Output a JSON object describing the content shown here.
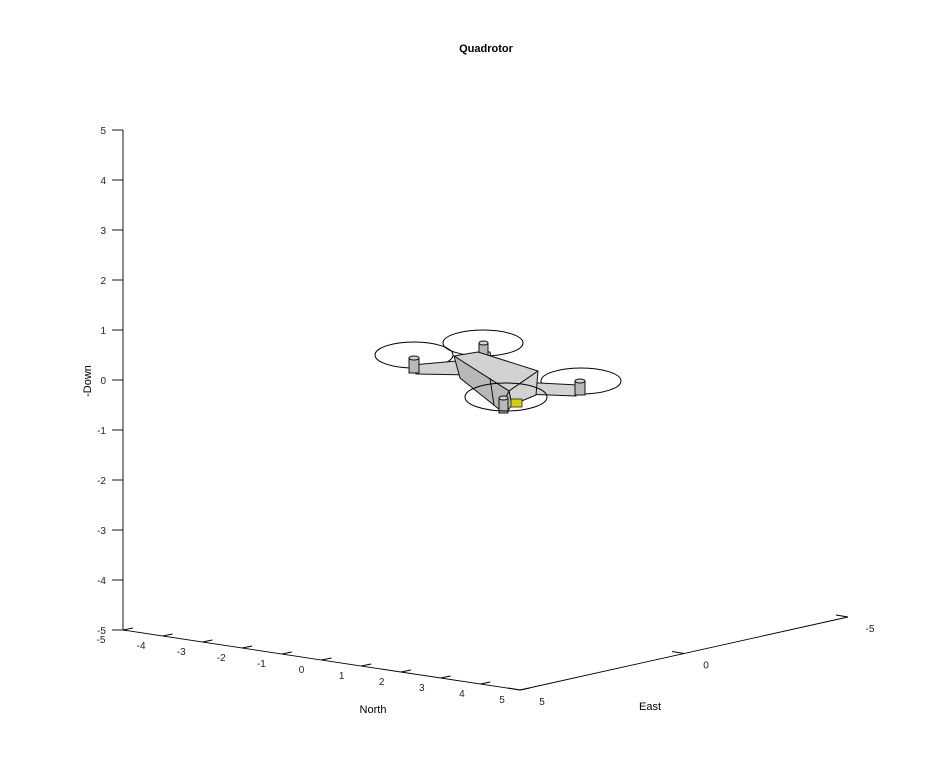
{
  "chart_data": {
    "type": "3d-plot",
    "title": "Quadrotor",
    "xlabel": "North",
    "ylabel": "East",
    "zlabel": "-Down",
    "xlim": [
      -5,
      5
    ],
    "ylim": [
      -5,
      5
    ],
    "zlim": [
      -5,
      5
    ],
    "x_ticks": [
      "-5",
      "-4",
      "-3",
      "-2",
      "-1",
      "0",
      "1",
      "2",
      "3",
      "4",
      "5"
    ],
    "y_ticks": [
      "5",
      "0",
      "-5"
    ],
    "z_ticks": [
      "5",
      "4",
      "3",
      "2",
      "1",
      "0",
      "-1",
      "-2",
      "-3",
      "-4",
      "-5"
    ],
    "grid": false,
    "object": {
      "name": "quadrotor-model",
      "position": [
        0,
        0,
        0
      ],
      "colors": {
        "body": "#d2d2d2",
        "edge": "#111111",
        "camera": "#d8cc10"
      }
    }
  }
}
